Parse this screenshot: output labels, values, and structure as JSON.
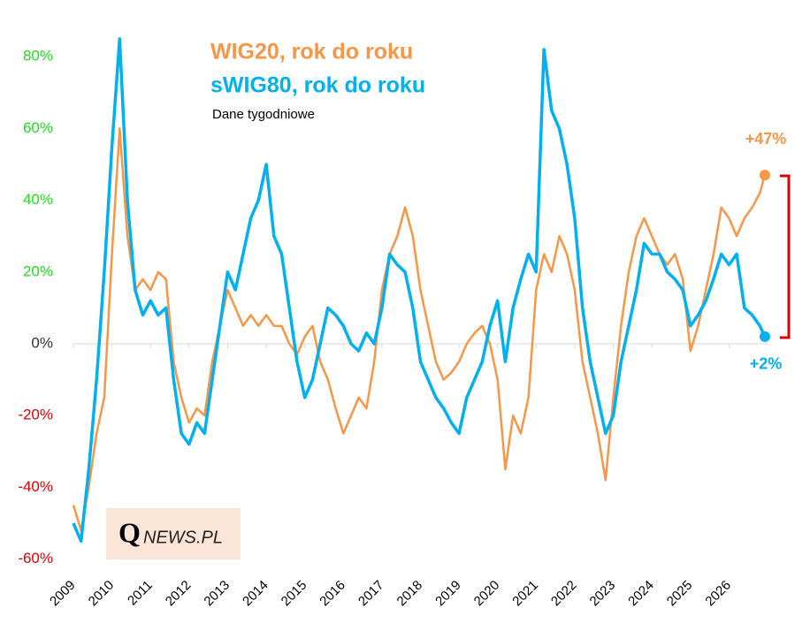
{
  "chart_data": {
    "type": "line",
    "subtitle": "Dane tygodniowe",
    "logo": {
      "mark": "Q",
      "text": "NEWS.PL"
    },
    "x": [
      2009.0,
      2009.2,
      2009.4,
      2009.6,
      2009.8,
      2010.0,
      2010.2,
      2010.4,
      2010.6,
      2010.8,
      2011.0,
      2011.2,
      2011.4,
      2011.6,
      2011.8,
      2012.0,
      2012.2,
      2012.4,
      2012.6,
      2012.8,
      2013.0,
      2013.2,
      2013.4,
      2013.6,
      2013.8,
      2014.0,
      2014.2,
      2014.4,
      2014.6,
      2014.8,
      2015.0,
      2015.2,
      2015.4,
      2015.6,
      2015.8,
      2016.0,
      2016.2,
      2016.4,
      2016.6,
      2016.8,
      2017.0,
      2017.2,
      2017.4,
      2017.6,
      2017.8,
      2018.0,
      2018.2,
      2018.4,
      2018.6,
      2018.8,
      2019.0,
      2019.2,
      2019.4,
      2019.6,
      2019.8,
      2020.0,
      2020.2,
      2020.4,
      2020.6,
      2020.8,
      2021.0,
      2021.2,
      2021.4,
      2021.6,
      2021.8,
      2022.0,
      2022.2,
      2022.4,
      2022.6,
      2022.8,
      2023.0,
      2023.2,
      2023.4,
      2023.6,
      2023.8,
      2024.0,
      2024.2,
      2024.4,
      2024.6,
      2024.8,
      2025.0,
      2025.2,
      2025.4,
      2025.6,
      2025.8,
      2026.0,
      2026.2,
      2026.4,
      2026.6,
      2026.8,
      2026.93
    ],
    "series": [
      {
        "name": "WIG20, rok do roku",
        "color": "#f79646",
        "end_label": "+47%",
        "values": [
          -45,
          -52,
          -40,
          -25,
          -15,
          25,
          60,
          30,
          15,
          18,
          15,
          20,
          18,
          -5,
          -15,
          -22,
          -18,
          -20,
          -5,
          5,
          15,
          10,
          5,
          8,
          5,
          8,
          5,
          5,
          0,
          -3,
          2,
          5,
          -5,
          -10,
          -18,
          -25,
          -20,
          -15,
          -18,
          -5,
          15,
          25,
          30,
          38,
          30,
          15,
          5,
          -5,
          -10,
          -8,
          -5,
          0,
          3,
          5,
          0,
          -10,
          -35,
          -20,
          -25,
          -15,
          15,
          25,
          20,
          30,
          25,
          15,
          -5,
          -15,
          -25,
          -38,
          -15,
          5,
          20,
          30,
          35,
          30,
          25,
          22,
          25,
          18,
          -2,
          5,
          15,
          25,
          38,
          35,
          30,
          35,
          38,
          42,
          47
        ]
      },
      {
        "name": "sWIG80, rok do roku",
        "color": "#00b0f0",
        "end_label": "+2%",
        "values": [
          -50,
          -55,
          -35,
          -10,
          20,
          55,
          85,
          40,
          15,
          8,
          12,
          8,
          10,
          -10,
          -25,
          -28,
          -22,
          -25,
          -10,
          5,
          20,
          15,
          25,
          35,
          40,
          50,
          30,
          25,
          10,
          -5,
          -15,
          -10,
          0,
          10,
          8,
          5,
          0,
          -2,
          3,
          0,
          10,
          25,
          22,
          20,
          10,
          -5,
          -10,
          -15,
          -18,
          -22,
          -25,
          -15,
          -10,
          -5,
          5,
          12,
          -5,
          10,
          18,
          25,
          20,
          82,
          65,
          60,
          50,
          35,
          10,
          -5,
          -15,
          -25,
          -20,
          -5,
          5,
          15,
          28,
          25,
          25,
          20,
          18,
          15,
          5,
          8,
          12,
          18,
          25,
          22,
          25,
          10,
          8,
          5,
          2
        ]
      }
    ],
    "xlim": [
      2009,
      2027
    ],
    "xticks": [
      2009,
      2010,
      2011,
      2012,
      2013,
      2014,
      2015,
      2016,
      2017,
      2018,
      2019,
      2020,
      2021,
      2022,
      2023,
      2024,
      2025,
      2026
    ],
    "ylim": [
      -62,
      91
    ],
    "yticks": [
      {
        "value": -60,
        "label": "-60%"
      },
      {
        "value": -40,
        "label": "-40%"
      },
      {
        "value": -20,
        "label": "-20%"
      },
      {
        "value": 0,
        "label": "0%"
      },
      {
        "value": 20,
        "label": "20%"
      },
      {
        "value": 40,
        "label": "40%"
      },
      {
        "value": 60,
        "label": "60%"
      },
      {
        "value": 80,
        "label": "80%"
      }
    ],
    "grid": false
  }
}
